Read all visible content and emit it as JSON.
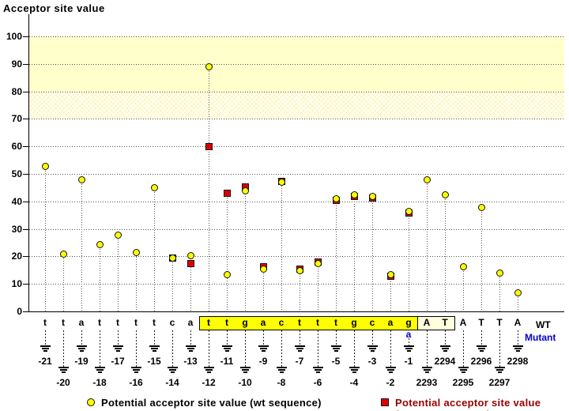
{
  "title": "Acceptor site value",
  "row_labels": {
    "wt": "WT",
    "mutant": "Mutant"
  },
  "legend": {
    "wt_label": "Potential acceptor site value (wt sequence)",
    "mutant_label": "Potential acceptor site value (mutant sequence)"
  },
  "colors": {
    "wt_marker": "#FFFF00",
    "mutant_marker": "#DD0000",
    "score_band_solid": "#FFFFCC",
    "intron_highlight": "#FFFF00",
    "exon_highlight": "#FFFFDD",
    "mutant_text": "#0000CC",
    "legend_mutant_text": "#990000"
  },
  "chart_data": {
    "type": "scatter",
    "title": "Acceptor site value",
    "ylabel": "Acceptor site value",
    "ylim": [
      0,
      105
    ],
    "yticks": [
      0,
      10,
      20,
      30,
      40,
      50,
      60,
      70,
      80,
      90,
      100
    ],
    "grid": "horizontal-dotted",
    "legend_position": "bottom",
    "bands": [
      {
        "range": [
          80,
          100
        ],
        "style": "solid"
      },
      {
        "range": [
          70,
          80
        ],
        "style": "hatched"
      }
    ],
    "series_names": [
      "wt",
      "mutant"
    ],
    "points": [
      {
        "pos": "-21",
        "base": "t",
        "wt": 53,
        "mut": null,
        "highlight": "none"
      },
      {
        "pos": "-20",
        "base": "t",
        "wt": 21,
        "mut": null,
        "highlight": "none"
      },
      {
        "pos": "-19",
        "base": "a",
        "wt": 48,
        "mut": null,
        "highlight": "none"
      },
      {
        "pos": "-18",
        "base": "t",
        "wt": 24.5,
        "mut": null,
        "highlight": "none"
      },
      {
        "pos": "-17",
        "base": "t",
        "wt": 28,
        "mut": null,
        "highlight": "none"
      },
      {
        "pos": "-16",
        "base": "t",
        "wt": 21.5,
        "mut": null,
        "highlight": "none"
      },
      {
        "pos": "-15",
        "base": "t",
        "wt": 45,
        "mut": null,
        "highlight": "none"
      },
      {
        "pos": "-14",
        "base": "c",
        "wt": 19.5,
        "mut": 19.5,
        "highlight": "none"
      },
      {
        "pos": "-13",
        "base": "a",
        "wt": 20.5,
        "mut": 17.5,
        "highlight": "none"
      },
      {
        "pos": "-12",
        "base": "t",
        "wt": 89,
        "mut": 60,
        "highlight": "intron"
      },
      {
        "pos": "-11",
        "base": "t",
        "wt": 13.5,
        "mut": 43,
        "highlight": "intron"
      },
      {
        "pos": "-10",
        "base": "g",
        "wt": 44,
        "mut": 45.5,
        "highlight": "intron"
      },
      {
        "pos": "-9",
        "base": "a",
        "wt": 15.5,
        "mut": 16.5,
        "highlight": "intron"
      },
      {
        "pos": "-8",
        "base": "c",
        "wt": 47,
        "mut": 47.5,
        "highlight": "intron"
      },
      {
        "pos": "-7",
        "base": "t",
        "wt": 15,
        "mut": 15.5,
        "highlight": "intron"
      },
      {
        "pos": "-6",
        "base": "t",
        "wt": 17.5,
        "mut": 18,
        "highlight": "intron"
      },
      {
        "pos": "-5",
        "base": "t",
        "wt": 41,
        "mut": 40.5,
        "highlight": "intron"
      },
      {
        "pos": "-4",
        "base": "g",
        "wt": 42.5,
        "mut": 42,
        "highlight": "intron"
      },
      {
        "pos": "-3",
        "base": "c",
        "wt": 42,
        "mut": 41.5,
        "highlight": "intron"
      },
      {
        "pos": "-2",
        "base": "a",
        "wt": 13.5,
        "mut": 13,
        "highlight": "intron"
      },
      {
        "pos": "-1",
        "base": "g",
        "wt": 36.5,
        "mut": 36,
        "highlight": "intron",
        "mutant_base": "a"
      },
      {
        "pos": "2293",
        "base": "A",
        "wt": 48,
        "mut": null,
        "highlight": "exon"
      },
      {
        "pos": "2294",
        "base": "T",
        "wt": 42.5,
        "mut": null,
        "highlight": "exon"
      },
      {
        "pos": "2295",
        "base": "A",
        "wt": 16.5,
        "mut": null,
        "highlight": "none"
      },
      {
        "pos": "2296",
        "base": "T",
        "wt": 38,
        "mut": null,
        "highlight": "none"
      },
      {
        "pos": "2297",
        "base": "T",
        "wt": 14,
        "mut": null,
        "highlight": "none"
      },
      {
        "pos": "2298",
        "base": "A",
        "wt": 7,
        "mut": null,
        "highlight": "none"
      }
    ]
  }
}
